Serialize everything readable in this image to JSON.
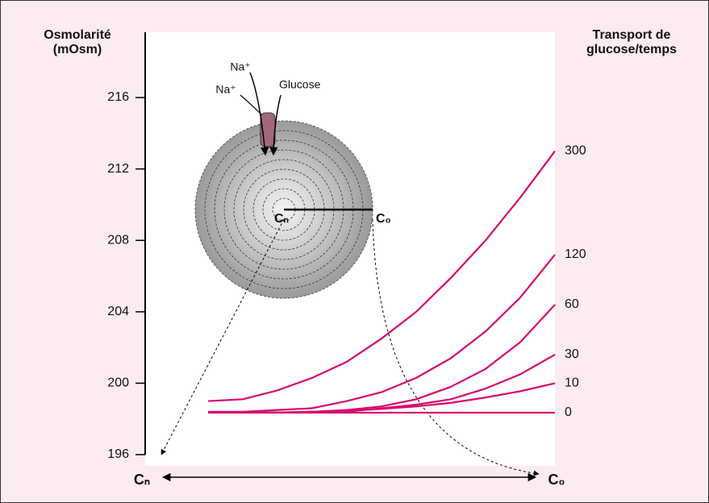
{
  "chart_data": {
    "type": "line",
    "y_label_lines": [
      "Osmolarité",
      "(mOsm)"
    ],
    "y2_label_lines": [
      "Transport de",
      "glucose/temps"
    ],
    "x_start_label": "Cₙ",
    "x_end_label": "C₀",
    "inset_labels": {
      "na_outer": "Na⁺",
      "na_inner": "Na⁺",
      "glucose": "Glucose",
      "center": "Cₙ",
      "edge": "C₀"
    },
    "categories": [
      null,
      null,
      null,
      null,
      null,
      null,
      null,
      null,
      null,
      null,
      null
    ],
    "ylim": [
      196,
      216
    ],
    "yticks": [
      196,
      200,
      204,
      208,
      212,
      216
    ],
    "series": [
      {
        "name": "300",
        "color": "#d6086e",
        "values": [
          199.0,
          199.1,
          199.6,
          200.3,
          201.2,
          202.5,
          204.0,
          205.9,
          208.0,
          210.4,
          213.0
        ]
      },
      {
        "name": "120",
        "color": "#d6086e",
        "values": [
          198.4,
          198.4,
          198.5,
          198.6,
          199.0,
          199.5,
          200.3,
          201.4,
          202.9,
          204.8,
          207.2
        ]
      },
      {
        "name": "60",
        "color": "#d6086e",
        "values": [
          198.35,
          198.35,
          198.36,
          198.4,
          198.5,
          198.7,
          199.1,
          199.8,
          200.8,
          202.3,
          204.4
        ]
      },
      {
        "name": "30",
        "color": "#d6086e",
        "values": [
          198.35,
          198.35,
          198.35,
          198.4,
          198.4,
          198.6,
          198.8,
          199.1,
          199.7,
          200.5,
          201.6
        ]
      },
      {
        "name": "10",
        "color": "#d6086e",
        "values": [
          198.35,
          198.35,
          198.36,
          198.4,
          198.45,
          198.56,
          198.7,
          198.9,
          199.2,
          199.55,
          200.0
        ]
      },
      {
        "name": "0",
        "color": "#d6086e",
        "values": [
          198.35,
          198.35,
          198.35,
          198.35,
          198.35,
          198.35,
          198.35,
          198.35,
          198.35,
          198.35,
          198.35
        ]
      }
    ]
  }
}
